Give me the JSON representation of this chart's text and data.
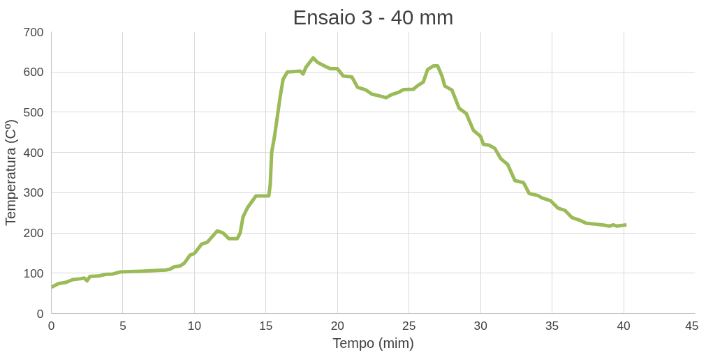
{
  "chart_data": {
    "type": "line",
    "title": "Ensaio 3 - 40 mm",
    "xlabel": "Tempo (mim)",
    "ylabel": "Temperatura (Cº)",
    "x": [
      0,
      0.5,
      1,
      1.5,
      2,
      2.3,
      2.5,
      2.7,
      3.3,
      3.8,
      4.3,
      4.8,
      5.5,
      6.3,
      7,
      8,
      8.3,
      8.6,
      9,
      9.3,
      9.7,
      10,
      10.5,
      10.9,
      11.3,
      11.6,
      12,
      12.4,
      13,
      13.2,
      13.4,
      13.7,
      14.3,
      15.2,
      15.3,
      15.4,
      15.6,
      16,
      16.2,
      16.5,
      17.4,
      17.6,
      17.8,
      18.3,
      18.6,
      19.2,
      19.5,
      20,
      20.4,
      21,
      21.4,
      22,
      22.4,
      23,
      23.4,
      23.8,
      24.3,
      24.6,
      25.3,
      25.6,
      26,
      26.3,
      26.7,
      27,
      27.3,
      27.5,
      28,
      28.5,
      29,
      29.5,
      30,
      30.2,
      30.6,
      31,
      31.4,
      31.9,
      32.4,
      33,
      33.4,
      34,
      34.3,
      34.9,
      35.4,
      35.9,
      36.4,
      36.9,
      37.4,
      38,
      38.5,
      39,
      39.3,
      39.5,
      40.2
    ],
    "series": [
      {
        "color": "#9bbb59",
        "values": [
          65,
          74,
          77,
          84,
          86,
          88,
          81,
          92,
          93,
          97,
          98,
          103,
          104,
          105,
          106,
          108,
          110,
          116,
          118,
          125,
          145,
          149,
          172,
          177,
          193,
          205,
          200,
          186,
          186,
          200,
          240,
          262,
          292,
          292,
          320,
          400,
          440,
          540,
          582,
          600,
          602,
          595,
          612,
          635,
          624,
          613,
          608,
          608,
          590,
          588,
          562,
          555,
          545,
          540,
          536,
          544,
          550,
          556,
          557,
          566,
          575,
          606,
          615,
          615,
          590,
          565,
          555,
          510,
          497,
          455,
          440,
          420,
          418,
          410,
          385,
          370,
          330,
          325,
          298,
          293,
          287,
          280,
          262,
          256,
          238,
          232,
          224,
          222,
          220,
          217,
          220,
          217,
          220
        ]
      }
    ],
    "xlim": [
      0,
      45
    ],
    "xticks": [
      0,
      5,
      10,
      15,
      20,
      25,
      30,
      35,
      40,
      45
    ],
    "ylim": [
      0,
      700
    ],
    "yticks": [
      0,
      100,
      200,
      300,
      400,
      500,
      600,
      700
    ],
    "grid": true,
    "marker": "none",
    "line_style": "solid"
  }
}
